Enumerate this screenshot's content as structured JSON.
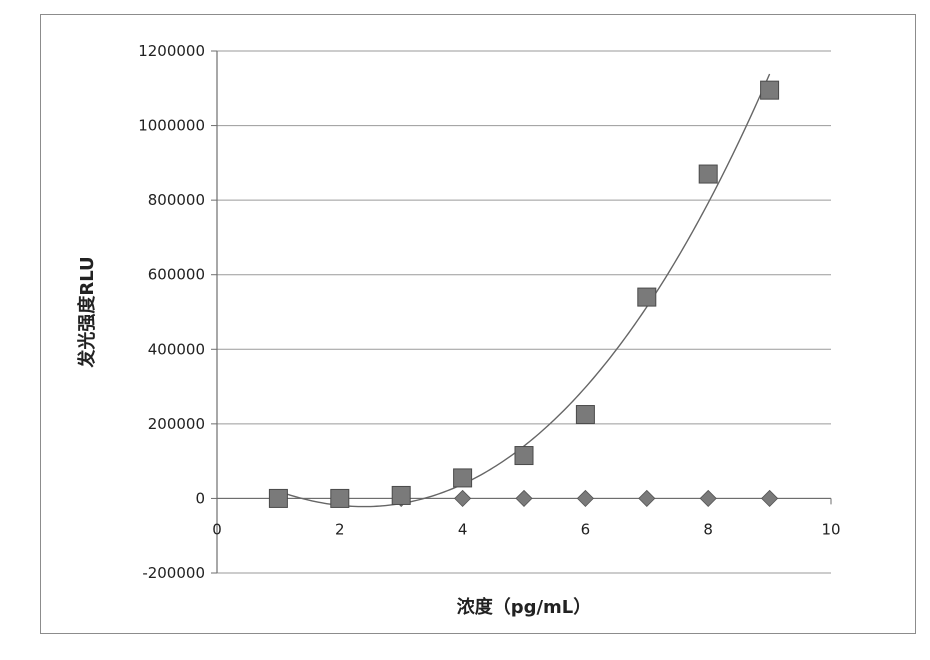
{
  "chart_data": {
    "type": "scatter",
    "title": "",
    "xlabel": "浓度（pg/mL）",
    "ylabel": "发光强度RLU",
    "xlim": [
      0,
      10
    ],
    "ylim": [
      -200000,
      1200000
    ],
    "x_ticks": [
      0,
      2,
      4,
      6,
      8,
      10
    ],
    "y_ticks": [
      -200000,
      0,
      200000,
      400000,
      600000,
      800000,
      1000000,
      1200000
    ],
    "x_tick_labels": [
      "0",
      "2",
      "4",
      "6",
      "8",
      "10"
    ],
    "y_tick_labels": [
      "-200000",
      "0",
      "200000",
      "400000",
      "600000",
      "800000",
      "1000000",
      "1200000"
    ],
    "grid": "horizontal",
    "series": [
      {
        "marker": "square",
        "color": "#7a7a7a",
        "x": [
          1,
          2,
          3,
          4,
          5,
          6,
          7,
          8,
          9
        ],
        "y": [
          0,
          0,
          8000,
          55000,
          115000,
          225000,
          540000,
          870000,
          1095000
        ]
      },
      {
        "marker": "diamond",
        "color": "#7a7a7a",
        "x": [
          1,
          2,
          3,
          4,
          5,
          6,
          7,
          8,
          9
        ],
        "y": [
          0,
          0,
          0,
          0,
          0,
          0,
          0,
          0,
          0
        ]
      }
    ],
    "trendline": {
      "type": "polynomial",
      "series_index": 0,
      "color": "#666666"
    }
  }
}
